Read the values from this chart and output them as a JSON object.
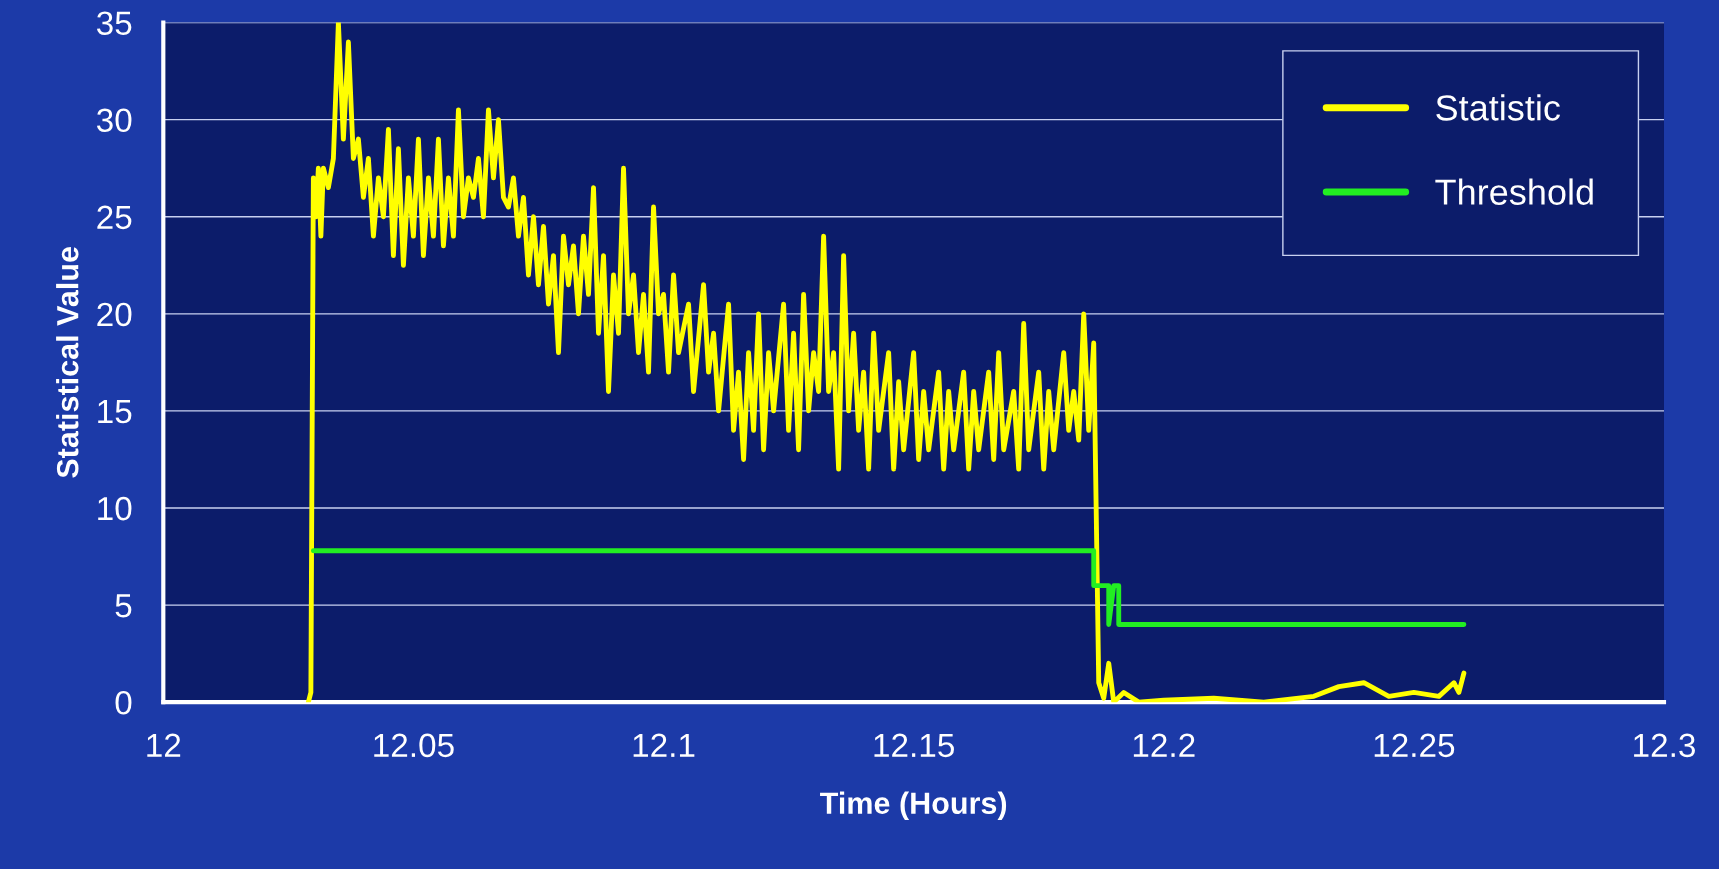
{
  "chart_data": {
    "type": "line",
    "xlabel": "Time (Hours)",
    "ylabel": "Statistical Value",
    "xlim": [
      12,
      12.3
    ],
    "xticks": [
      12,
      12.05,
      12.1,
      12.15,
      12.2,
      12.25,
      12.3
    ],
    "ylim": [
      0,
      35
    ],
    "yticks": [
      0,
      5,
      10,
      15,
      20,
      25,
      30,
      35
    ],
    "grid": "y",
    "legend": "top right",
    "line_style": "solid",
    "marker": "none",
    "series": [
      {
        "name": "Statistic",
        "color": "#ffff00",
        "x": [
          12.029,
          12.0295,
          12.03,
          12.0305,
          12.031,
          12.0315,
          12.032,
          12.033,
          12.034,
          12.035,
          12.036,
          12.037,
          12.038,
          12.039,
          12.04,
          12.041,
          12.042,
          12.043,
          12.044,
          12.045,
          12.046,
          12.047,
          12.048,
          12.049,
          12.05,
          12.051,
          12.052,
          12.053,
          12.054,
          12.055,
          12.056,
          12.057,
          12.058,
          12.059,
          12.06,
          12.061,
          12.062,
          12.063,
          12.064,
          12.065,
          12.066,
          12.067,
          12.068,
          12.069,
          12.07,
          12.071,
          12.072,
          12.073,
          12.074,
          12.075,
          12.076,
          12.077,
          12.078,
          12.079,
          12.08,
          12.081,
          12.082,
          12.083,
          12.084,
          12.085,
          12.086,
          12.087,
          12.088,
          12.089,
          12.09,
          12.091,
          12.092,
          12.093,
          12.094,
          12.095,
          12.096,
          12.097,
          12.098,
          12.099,
          12.1,
          12.101,
          12.102,
          12.103,
          12.105,
          12.106,
          12.108,
          12.109,
          12.11,
          12.111,
          12.113,
          12.114,
          12.115,
          12.116,
          12.117,
          12.118,
          12.119,
          12.12,
          12.121,
          12.122,
          12.124,
          12.125,
          12.126,
          12.127,
          12.128,
          12.129,
          12.13,
          12.131,
          12.132,
          12.133,
          12.134,
          12.135,
          12.136,
          12.137,
          12.138,
          12.139,
          12.14,
          12.141,
          12.142,
          12.143,
          12.145,
          12.146,
          12.147,
          12.148,
          12.15,
          12.151,
          12.152,
          12.153,
          12.155,
          12.156,
          12.157,
          12.158,
          12.16,
          12.161,
          12.162,
          12.163,
          12.165,
          12.166,
          12.167,
          12.168,
          12.17,
          12.171,
          12.172,
          12.173,
          12.175,
          12.176,
          12.177,
          12.178,
          12.18,
          12.181,
          12.182,
          12.183,
          12.184,
          12.185,
          12.186,
          12.187,
          12.188,
          12.189,
          12.19,
          12.192,
          12.195,
          12.2,
          12.21,
          12.22,
          12.23,
          12.235,
          12.24,
          12.245,
          12.25,
          12.255,
          12.258,
          12.259,
          12.26
        ],
        "values": [
          0,
          0.5,
          27,
          25,
          27.5,
          24,
          27.5,
          26.5,
          28,
          35,
          29,
          34,
          28,
          29,
          26,
          28,
          24,
          27,
          25,
          29.5,
          23,
          28.5,
          22.5,
          27,
          24,
          29,
          23,
          27,
          24,
          29,
          23.5,
          27,
          24,
          30.5,
          25,
          27,
          26,
          28,
          25,
          30.5,
          27,
          30,
          26,
          25.5,
          27,
          24,
          26,
          22,
          25,
          21.5,
          24.5,
          20.5,
          23,
          18,
          24,
          21.5,
          23.5,
          20,
          24,
          21,
          26.5,
          19,
          23,
          16,
          22,
          19,
          27.5,
          20,
          22,
          18,
          21,
          17,
          25.5,
          20,
          21,
          17,
          22,
          18,
          20.5,
          16,
          21.5,
          17,
          19,
          15,
          20.5,
          14,
          17,
          12.5,
          18,
          14,
          20,
          13,
          18,
          15,
          20.5,
          14,
          19,
          13,
          21,
          15,
          18,
          16,
          24,
          16,
          18,
          12,
          23,
          15,
          19,
          14,
          17,
          12,
          19,
          14,
          18,
          12,
          16.5,
          13,
          18,
          12.5,
          16,
          13,
          17,
          12,
          16,
          13,
          17,
          12,
          16,
          13,
          17,
          12.5,
          18,
          13,
          16,
          12,
          19.5,
          13,
          17,
          12,
          16,
          13,
          18,
          14,
          16,
          13.5,
          20,
          14,
          18.5,
          1,
          0.2,
          2,
          0,
          0.5,
          0,
          0.1,
          0.2,
          0,
          0.3,
          0.8,
          1,
          0.3,
          0.5,
          0.3,
          1,
          0.5,
          1.5
        ]
      },
      {
        "name": "Threshold",
        "color": "#22ee22",
        "x": [
          12.03,
          12.186,
          12.186,
          12.189,
          12.189,
          12.19,
          12.191,
          12.191,
          12.26
        ],
        "values": [
          7.8,
          7.8,
          6,
          6,
          4,
          6,
          6,
          4,
          4
        ]
      }
    ]
  }
}
